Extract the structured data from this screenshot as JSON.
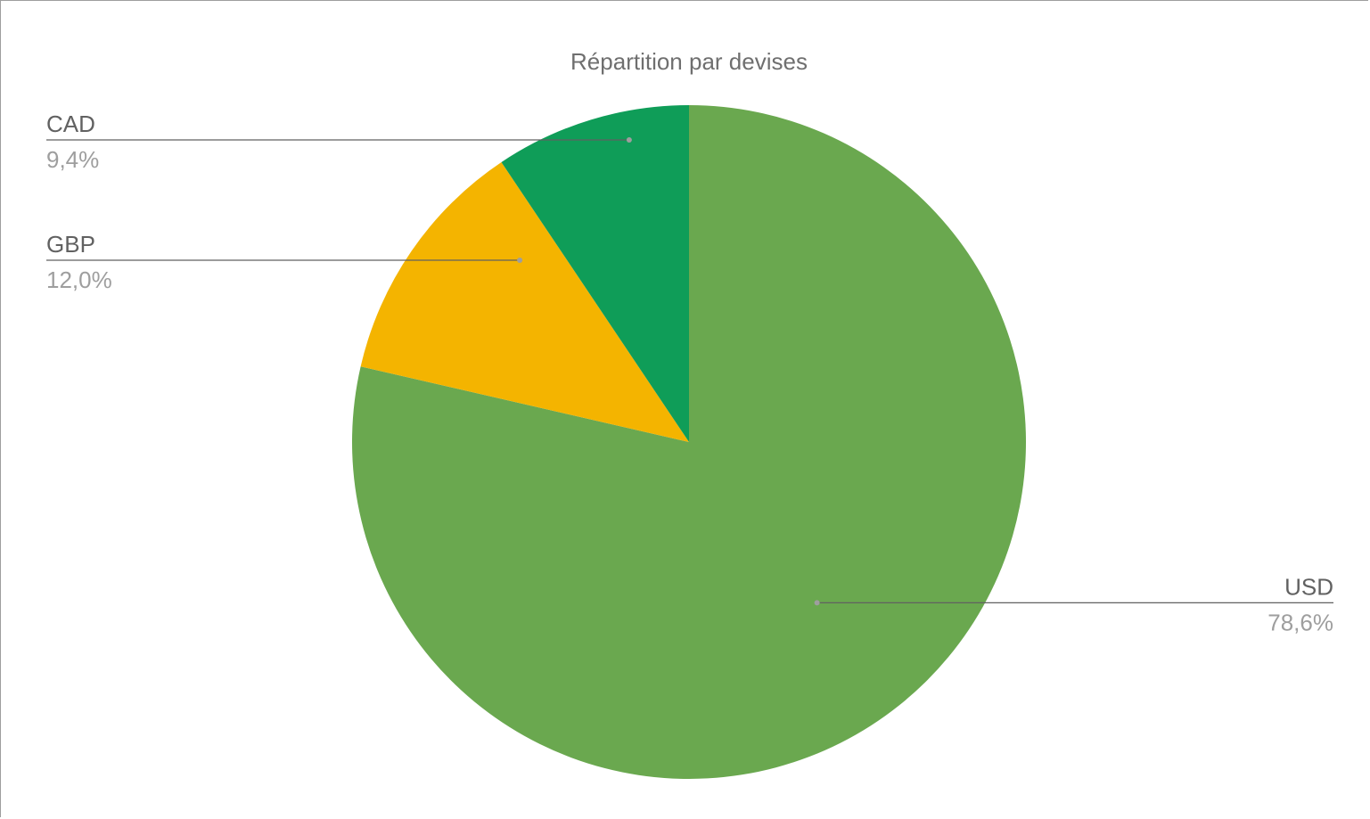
{
  "chart_data": {
    "type": "pie",
    "title": "Répartition par devises",
    "start_angle_deg": 0,
    "direction": "clockwise",
    "slices": [
      {
        "label": "USD",
        "value": 78.6,
        "display": "78,6%",
        "color": "#6aa84f",
        "label_side": "right"
      },
      {
        "label": "GBP",
        "value": 12.0,
        "display": "12,0%",
        "color": "#f4b400",
        "label_side": "left"
      },
      {
        "label": "CAD",
        "value": 9.4,
        "display": "9,4%",
        "color": "#0f9d58",
        "label_side": "left"
      }
    ],
    "legend": "none"
  }
}
